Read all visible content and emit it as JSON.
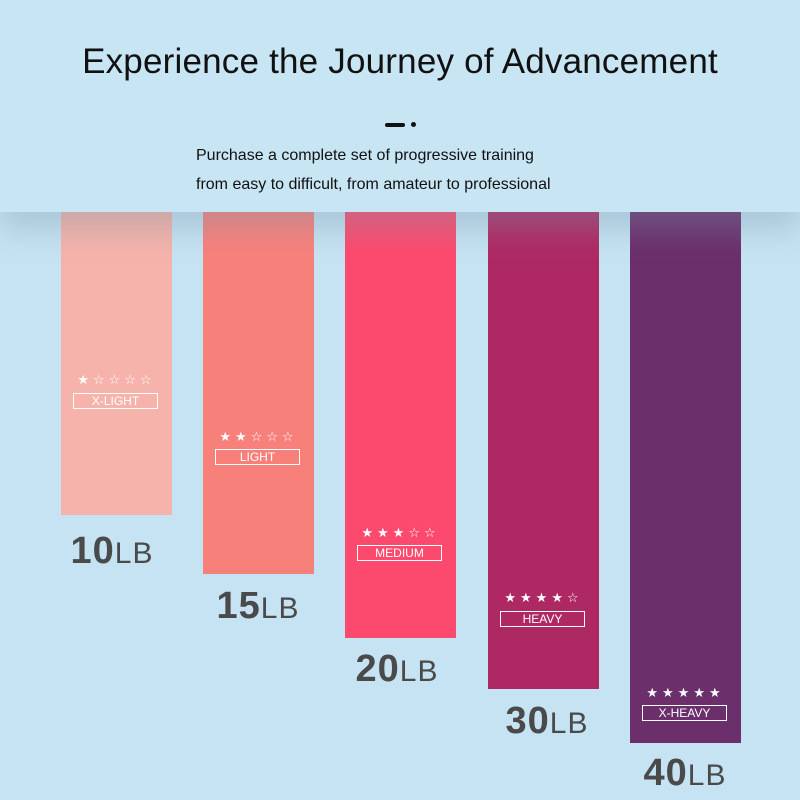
{
  "header": {
    "title": "Experience the Journey of Advancement",
    "subtitle_line1": "Purchase a complete set of progressive training",
    "subtitle_line2": "from easy to difficult, from amateur to professional"
  },
  "bands": [
    {
      "level": "X-LIGHT",
      "stars": "★☆☆☆☆",
      "weight_num": "10",
      "unit": "LB",
      "color": "#f6b3ab",
      "rating": 1
    },
    {
      "level": "LIGHT",
      "stars": "★★☆☆☆",
      "weight_num": "15",
      "unit": "LB",
      "color": "#f8807b",
      "rating": 2
    },
    {
      "level": "MEDIUM",
      "stars": "★★★☆☆",
      "weight_num": "20",
      "unit": "LB",
      "color": "#fc4a6e",
      "rating": 3
    },
    {
      "level": "HEAVY",
      "stars": "★★★★☆",
      "weight_num": "30",
      "unit": "LB",
      "color": "#ae2963",
      "rating": 4
    },
    {
      "level": "X-HEAVY",
      "stars": "★★★★★",
      "weight_num": "40",
      "unit": "LB",
      "color": "#6b2f6c",
      "rating": 5
    }
  ]
}
